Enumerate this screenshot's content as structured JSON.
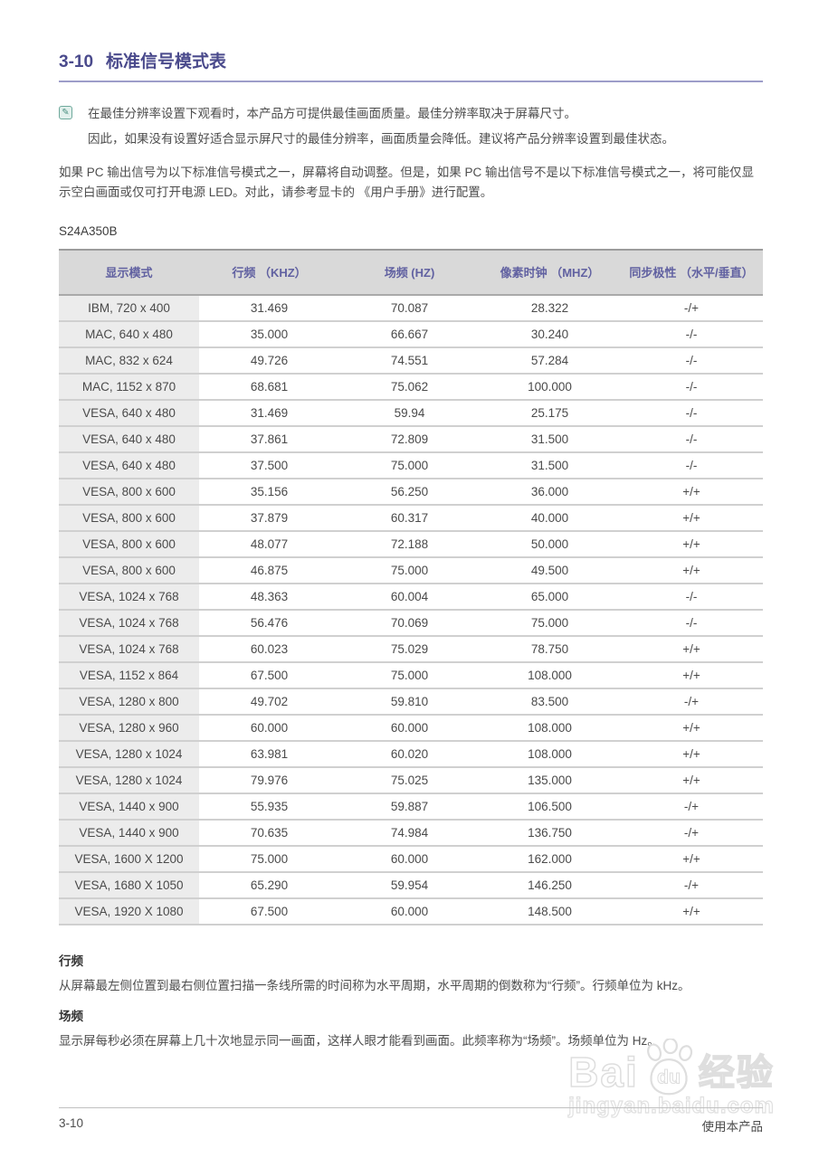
{
  "page": {
    "section_number": "3-10",
    "section_title": "标准信号模式表",
    "note_lines": [
      "在最佳分辨率设置下观看时，本产品方可提供最佳画面质量。最佳分辨率取决于屏幕尺寸。",
      "因此，如果没有设置好适合显示屏尺寸的最佳分辨率，画面质量会降低。建议将产品分辨率设置到最佳状态。"
    ],
    "intro_paragraph": "如果 PC 输出信号为以下标准信号模式之一，屏幕将自动调整。但是，如果 PC 输出信号不是以下标准信号模式之一，将可能仅显示空白画面或仅可打开电源 LED。对此，请参考显卡的 《用户手册》进行配置。",
    "model": "S24A350B"
  },
  "table": {
    "headers": [
      "显示模式",
      "行频 （KHZ）",
      "场频 (HZ)",
      "像素时钟 （MHZ）",
      "同步极性 （水平/垂直）"
    ],
    "rows": [
      [
        "IBM, 720 x 400",
        "31.469",
        "70.087",
        "28.322",
        "-/+"
      ],
      [
        "MAC, 640 x 480",
        "35.000",
        "66.667",
        "30.240",
        "-/-"
      ],
      [
        "MAC, 832 x 624",
        "49.726",
        "74.551",
        "57.284",
        "-/-"
      ],
      [
        "MAC, 1152 x 870",
        "68.681",
        "75.062",
        "100.000",
        "-/-"
      ],
      [
        "VESA, 640 x 480",
        "31.469",
        "59.94",
        "25.175",
        "-/-"
      ],
      [
        "VESA, 640 x 480",
        "37.861",
        "72.809",
        "31.500",
        "-/-"
      ],
      [
        "VESA, 640 x 480",
        "37.500",
        "75.000",
        "31.500",
        "-/-"
      ],
      [
        "VESA, 800 x 600",
        "35.156",
        "56.250",
        "36.000",
        "+/+"
      ],
      [
        "VESA, 800 x 600",
        "37.879",
        "60.317",
        "40.000",
        "+/+"
      ],
      [
        "VESA, 800 x 600",
        "48.077",
        "72.188",
        "50.000",
        "+/+"
      ],
      [
        "VESA, 800 x 600",
        "46.875",
        "75.000",
        "49.500",
        "+/+"
      ],
      [
        "VESA, 1024 x 768",
        "48.363",
        "60.004",
        "65.000",
        "-/-"
      ],
      [
        "VESA, 1024 x 768",
        "56.476",
        "70.069",
        "75.000",
        "-/-"
      ],
      [
        "VESA, 1024 x 768",
        "60.023",
        "75.029",
        "78.750",
        "+/+"
      ],
      [
        "VESA, 1152 x 864",
        "67.500",
        "75.000",
        "108.000",
        "+/+"
      ],
      [
        "VESA, 1280 x 800",
        "49.702",
        "59.810",
        "83.500",
        "-/+"
      ],
      [
        "VESA, 1280 x 960",
        "60.000",
        "60.000",
        "108.000",
        "+/+"
      ],
      [
        "VESA, 1280 x 1024",
        "63.981",
        "60.020",
        "108.000",
        "+/+"
      ],
      [
        "VESA, 1280 x 1024",
        "79.976",
        "75.025",
        "135.000",
        "+/+"
      ],
      [
        "VESA, 1440 x 900",
        "55.935",
        "59.887",
        "106.500",
        "-/+"
      ],
      [
        "VESA, 1440 x 900",
        "70.635",
        "74.984",
        "136.750",
        "-/+"
      ],
      [
        "VESA, 1600 X 1200",
        "75.000",
        "60.000",
        "162.000",
        "+/+"
      ],
      [
        "VESA, 1680 X 1050",
        "65.290",
        "59.954",
        "146.250",
        "-/+"
      ],
      [
        "VESA, 1920 X 1080",
        "67.500",
        "60.000",
        "148.500",
        "+/+"
      ]
    ]
  },
  "glossary": [
    {
      "term": "行频",
      "definition": "从屏幕最左侧位置到最右侧位置扫描一条线所需的时间称为水平周期，水平周期的倒数称为“行频”。行频单位为 kHz。"
    },
    {
      "term": "场频",
      "definition": "显示屏每秒必须在屏幕上几十次地显示同一画面，这样人眼才能看到画面。此频率称为“场频”。场频单位为 Hz。"
    }
  ],
  "watermark": {
    "brand_left": "Bai",
    "brand_paw_text": "du",
    "brand_suffix": "经验",
    "url": "jingyan.baidu.com"
  },
  "footer": {
    "page_number": "3-10",
    "right_text": "使用本产品"
  },
  "colors": {
    "title": "#4a4a8c",
    "title_rule": "#9d9dc9",
    "table_header_text": "#6161a1",
    "table_header_bg": "#d9d9d9",
    "first_column_bg": "#ececec",
    "note_icon": "#6fa99c"
  },
  "icons": {
    "note_icon": "pencil-note-icon",
    "watermark_paw": "baidu-paw-icon"
  }
}
